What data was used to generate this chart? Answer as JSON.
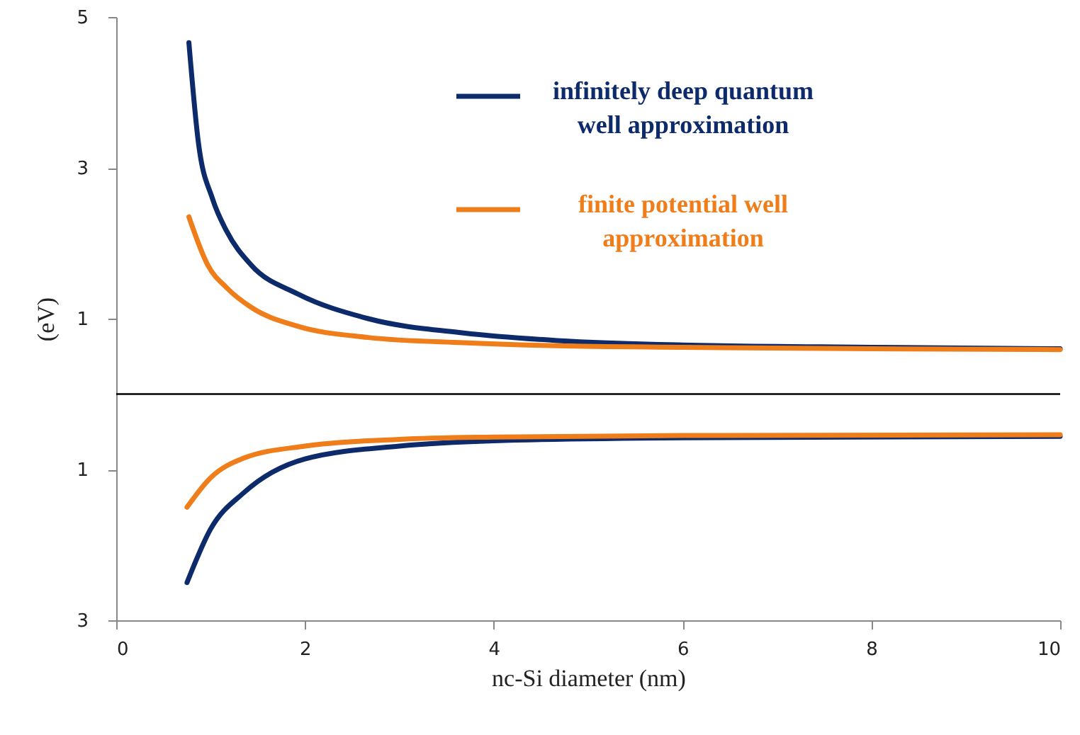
{
  "chart_data": {
    "type": "line",
    "xlabel": "nc-Si diameter (nm)",
    "ylabel": "(eV)",
    "xlim": [
      0,
      10
    ],
    "xticks": [
      0,
      2,
      4,
      6,
      8,
      10
    ],
    "ylim": [
      -3,
      5
    ],
    "yticks": [
      5,
      3,
      1,
      {
        "value": -1,
        "label": "1"
      },
      {
        "value": -3,
        "label": "3"
      }
    ],
    "legend": "top right",
    "grid": false,
    "ref_lines": [
      {
        "axis": "y",
        "value": 0,
        "color": "#000000"
      }
    ],
    "series": [
      {
        "name": "infinitely deep quantum well approximation",
        "color": "#0d2a6b",
        "x": [
          0.77,
          0.87,
          1.02,
          1.17,
          1.43,
          1.92,
          2.67,
          3.68,
          4.67,
          6,
          8,
          10
        ],
        "values": [
          4.66,
          3.34,
          2.59,
          2.16,
          1.71,
          1.33,
          1.0,
          0.81,
          0.71,
          0.65,
          0.62,
          0.6
        ]
      },
      {
        "name": "finite potential well approximation",
        "color": "#ee7d1a",
        "x": [
          0.77,
          0.97,
          1.17,
          1.43,
          1.92,
          2.67,
          3.68,
          4.67,
          6,
          8,
          10
        ],
        "values": [
          2.35,
          1.71,
          1.41,
          1.15,
          0.9,
          0.75,
          0.68,
          0.64,
          0.62,
          0.6,
          0.59
        ]
      },
      {
        "color": "#0d2a6b",
        "x": [
          0.75,
          1.0,
          1.35,
          2.0,
          3.0,
          4.0,
          6,
          10
        ],
        "values": [
          -2.5,
          -1.79,
          -1.31,
          -0.86,
          -0.69,
          -0.62,
          -0.58,
          -0.56
        ]
      },
      {
        "color": "#ee7d1a",
        "x": [
          0.75,
          1.0,
          1.35,
          2.0,
          3.0,
          4.0,
          6,
          10
        ],
        "values": [
          -1.5,
          -1.11,
          -0.85,
          -0.69,
          -0.6,
          -0.57,
          -0.55,
          -0.54
        ]
      }
    ]
  }
}
